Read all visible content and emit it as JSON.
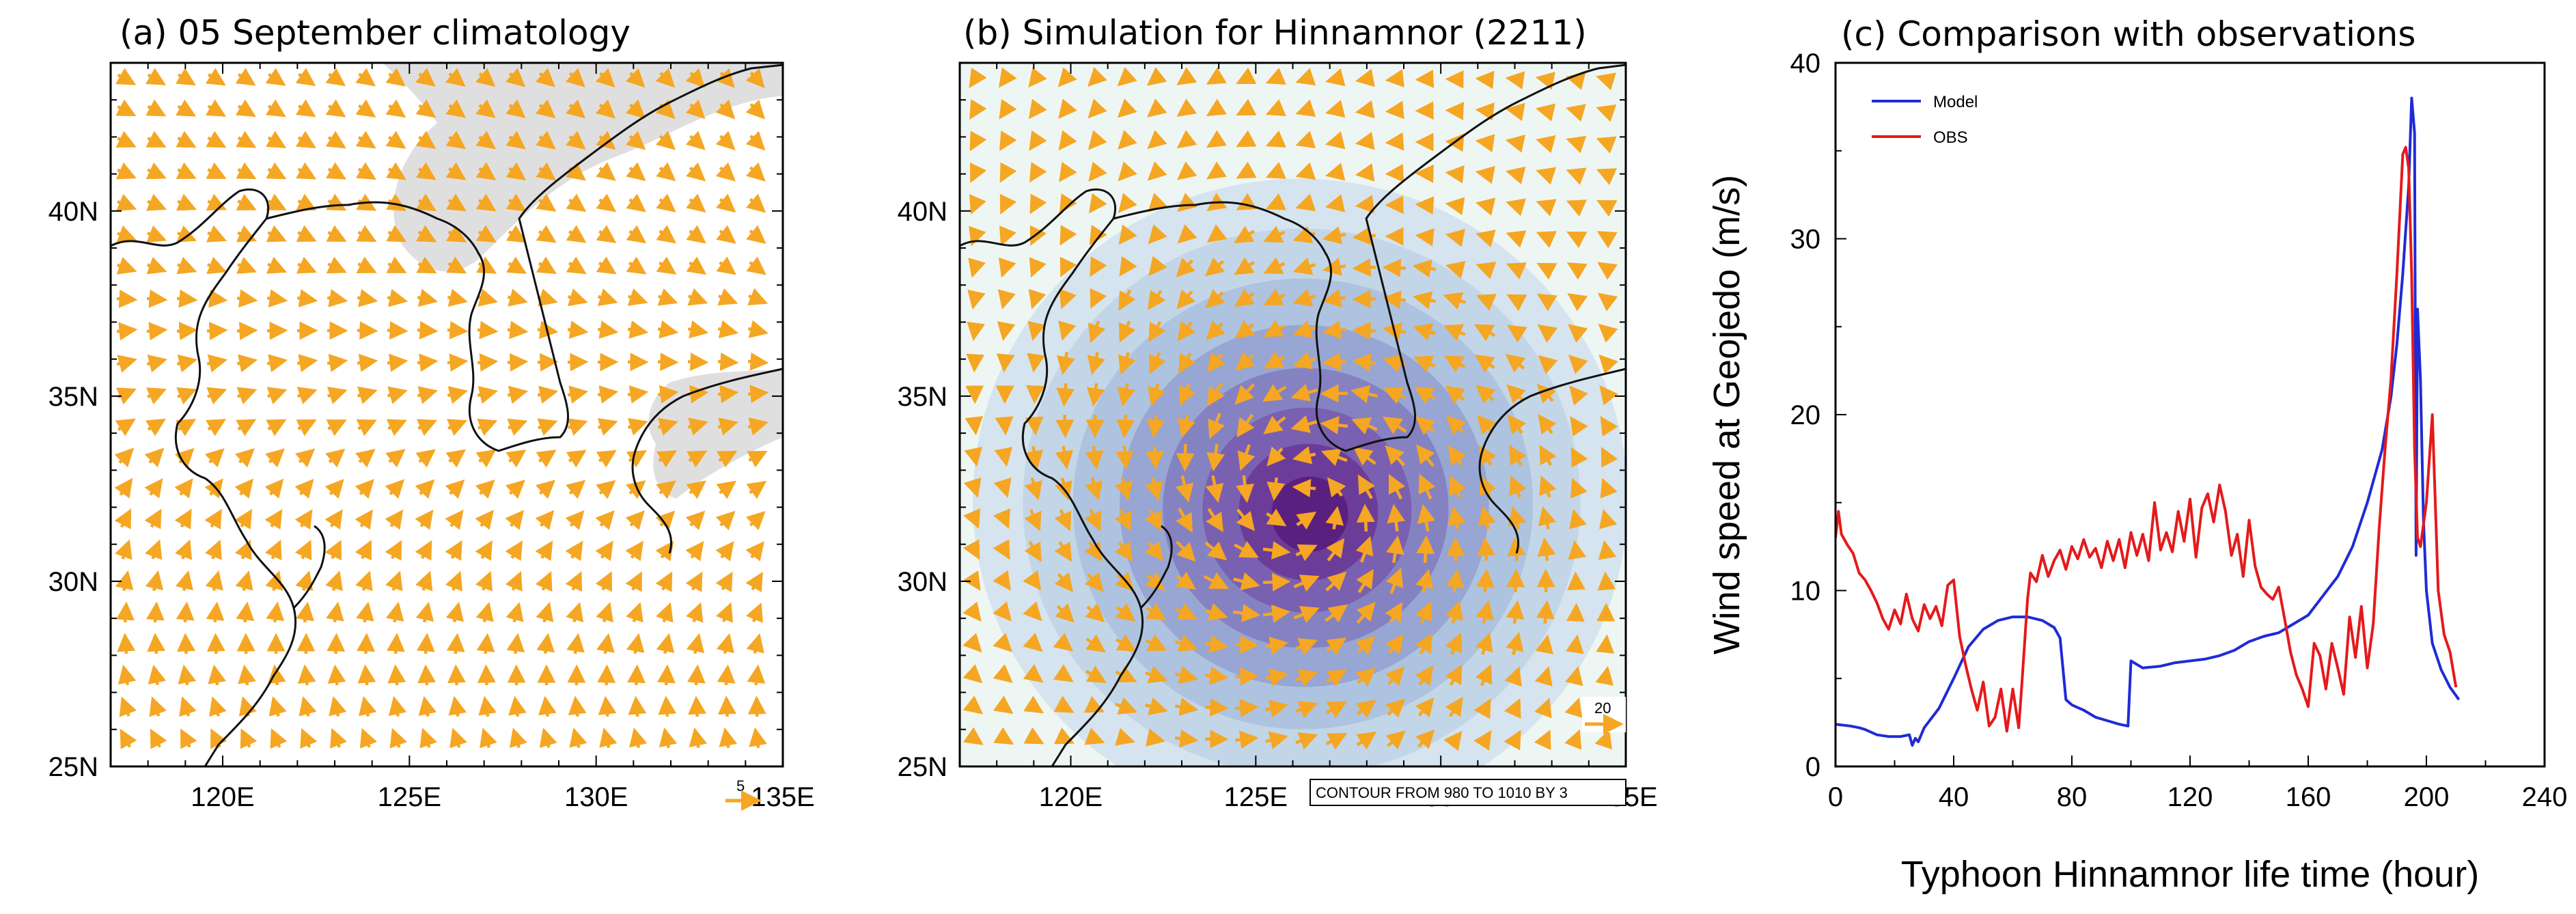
{
  "chart_data": [
    {
      "id": "a",
      "type": "vector-map",
      "title": "(a) 05 September climatology",
      "xticks": [
        "120E",
        "125E",
        "130E",
        "135E"
      ],
      "yticks": [
        "25N",
        "30N",
        "35N",
        "40N"
      ],
      "xlim": [
        117,
        135
      ],
      "ylim": [
        25,
        44
      ],
      "reference_vector": "5",
      "arrow_color": "#f5a623",
      "background_color": "#ffffff",
      "shading_color": "#d9d9d9"
    },
    {
      "id": "b",
      "type": "vector-map",
      "title": "(b) Simulation for Hinnamnor (2211)",
      "xticks": [
        "120E",
        "125E",
        "130E",
        "135E"
      ],
      "yticks": [
        "25N",
        "30N",
        "35N",
        "40N"
      ],
      "xlim": [
        117,
        135
      ],
      "ylim": [
        25,
        44
      ],
      "reference_vector": "20",
      "contour_info": "CONTOUR FROM 980 TO 1010 BY 3",
      "typhoon_center": [
        126.2,
        32.2
      ],
      "arrow_color": "#f5a623",
      "background_color": "#eef6f3",
      "contour_colors": [
        "#d5e4ee",
        "#c3d6e7",
        "#adc3df",
        "#97a6d2",
        "#8582c2",
        "#7a60b0",
        "#6c3d98",
        "#5a2080"
      ]
    },
    {
      "id": "c",
      "type": "line",
      "title": "(c) Comparison with observations",
      "xlabel": "Typhoon Hinnamnor life time (hour)",
      "ylabel": "Wind speed at Geojedo (m/s)",
      "xlim": [
        0,
        240
      ],
      "ylim": [
        0,
        40
      ],
      "xticks": [
        "0",
        "40",
        "80",
        "120",
        "160",
        "200",
        "240"
      ],
      "yticks": [
        "0",
        "10",
        "20",
        "30",
        "40"
      ],
      "legend_position": "top-left",
      "series": [
        {
          "name": "Model",
          "color": "#1f2bd6",
          "x": [
            0,
            5,
            8,
            10,
            14,
            18,
            22,
            25,
            26,
            27,
            28,
            30,
            35,
            40,
            45,
            50,
            55,
            60,
            65,
            70,
            74,
            76,
            78,
            80,
            84,
            88,
            92,
            96,
            99,
            100,
            104,
            110,
            115,
            120,
            125,
            130,
            135,
            140,
            145,
            150,
            155,
            160,
            165,
            170,
            175,
            180,
            185,
            188,
            190,
            192,
            194,
            195,
            196,
            196.5,
            197,
            198,
            199,
            200,
            202,
            205,
            208,
            211
          ],
          "values": [
            2.4,
            2.3,
            2.2,
            2.1,
            1.8,
            1.7,
            1.7,
            1.8,
            1.2,
            1.6,
            1.4,
            2.2,
            3.3,
            5.0,
            6.8,
            7.8,
            8.3,
            8.5,
            8.5,
            8.3,
            7.9,
            7.3,
            3.8,
            3.5,
            3.2,
            2.8,
            2.6,
            2.4,
            2.3,
            6.0,
            5.6,
            5.7,
            5.9,
            6.0,
            6.1,
            6.3,
            6.6,
            7.1,
            7.4,
            7.6,
            8.1,
            8.6,
            9.7,
            10.8,
            12.5,
            15.0,
            18.0,
            21.0,
            24.0,
            28.0,
            33.0,
            38.0,
            36.0,
            12.0,
            26.0,
            22.0,
            14.0,
            10.0,
            7.0,
            5.5,
            4.5,
            3.8
          ]
        },
        {
          "name": "OBS",
          "color": "#e41a1c",
          "x": [
            0,
            1,
            2,
            4,
            6,
            8,
            10,
            12,
            14,
            16,
            18,
            20,
            22,
            24,
            26,
            28,
            30,
            32,
            34,
            36,
            38,
            40,
            42,
            44,
            46,
            48,
            50,
            52,
            54,
            56,
            58,
            60,
            62,
            63,
            64,
            65,
            66,
            68,
            70,
            72,
            74,
            76,
            78,
            80,
            82,
            84,
            86,
            88,
            90,
            92,
            94,
            96,
            98,
            100,
            102,
            104,
            106,
            108,
            110,
            112,
            114,
            116,
            118,
            120,
            122,
            124,
            126,
            128,
            130,
            132,
            134,
            136,
            138,
            140,
            142,
            144,
            146,
            148,
            150,
            152,
            154,
            156,
            158,
            160,
            162,
            164,
            166,
            168,
            170,
            172,
            174,
            176,
            178,
            180,
            182,
            184,
            186,
            188,
            190,
            192,
            193,
            194,
            195,
            196,
            197,
            198,
            200,
            202,
            204,
            206,
            208,
            210
          ],
          "values": [
            13.0,
            14.5,
            13.2,
            12.6,
            12.1,
            11.0,
            10.6,
            10.0,
            9.3,
            8.4,
            7.8,
            8.9,
            8.1,
            9.8,
            8.4,
            7.7,
            9.2,
            8.4,
            9.1,
            8.0,
            10.3,
            10.6,
            7.4,
            5.8,
            4.4,
            3.2,
            4.8,
            2.3,
            2.8,
            4.4,
            2.0,
            4.4,
            2.2,
            4.5,
            7.0,
            9.5,
            11.0,
            10.5,
            12.0,
            10.8,
            11.7,
            12.3,
            11.2,
            12.5,
            11.8,
            12.9,
            11.9,
            12.4,
            11.3,
            12.8,
            11.7,
            12.9,
            11.3,
            13.3,
            12.0,
            13.2,
            11.7,
            15.0,
            12.3,
            13.3,
            12.2,
            14.5,
            12.8,
            15.2,
            11.9,
            14.7,
            15.5,
            13.9,
            16.0,
            14.5,
            12.0,
            13.2,
            10.8,
            14.0,
            11.4,
            10.2,
            9.8,
            9.5,
            10.2,
            8.4,
            6.5,
            5.2,
            4.4,
            3.4,
            7.0,
            6.3,
            4.4,
            7.0,
            5.6,
            4.1,
            8.5,
            6.2,
            9.1,
            5.6,
            8.1,
            13.5,
            18.0,
            22.0,
            28.0,
            34.8,
            35.2,
            34.0,
            28.0,
            18.0,
            13.0,
            12.5,
            15.0,
            20.0,
            10.0,
            7.5,
            6.5,
            4.5
          ]
        }
      ]
    }
  ]
}
